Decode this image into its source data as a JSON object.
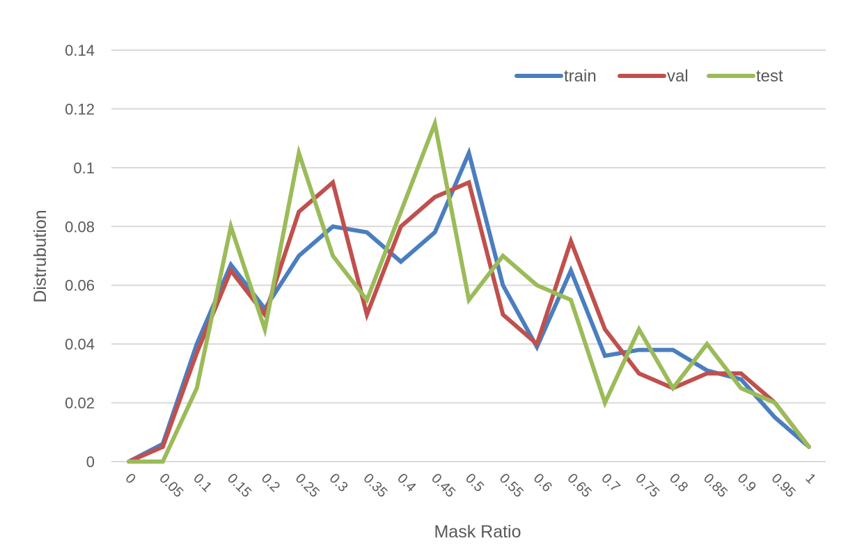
{
  "chart_data": {
    "type": "line",
    "title": "",
    "xlabel": "Mask Ratio",
    "ylabel": "Distrubution",
    "ylim": [
      0,
      0.14
    ],
    "yticks": [
      "0",
      "0.02",
      "0.04",
      "0.06",
      "0.08",
      "0.1",
      "0.12",
      "0.14"
    ],
    "grid": true,
    "legend_position": "top-right (inside)",
    "categories": [
      "0",
      "0.05",
      "0.1",
      "0.15",
      "0.2",
      "0.25",
      "0.3",
      "0.35",
      "0.4",
      "0.45",
      "0.5",
      "0.55",
      "0.6",
      "0.65",
      "0.7",
      "0.75",
      "0.8",
      "0.85",
      "0.9",
      "0.95",
      "1"
    ],
    "series": [
      {
        "name": "train",
        "color": "#4a7ebf",
        "values": [
          0,
          0.006,
          0.04,
          0.067,
          0.052,
          0.07,
          0.08,
          0.078,
          0.068,
          0.078,
          0.105,
          0.06,
          0.039,
          0.065,
          0.036,
          0.038,
          0.038,
          0.031,
          0.028,
          0.015,
          0.005
        ]
      },
      {
        "name": "val",
        "color": "#c0504d",
        "values": [
          0,
          0.005,
          0.037,
          0.065,
          0.05,
          0.085,
          0.095,
          0.05,
          0.08,
          0.09,
          0.095,
          0.05,
          0.04,
          0.075,
          0.045,
          0.03,
          0.025,
          0.03,
          0.03,
          0.02,
          0.005
        ]
      },
      {
        "name": "test",
        "color": "#9bbb59",
        "values": [
          0,
          0,
          0.025,
          0.08,
          0.045,
          0.105,
          0.07,
          0.055,
          0.085,
          0.115,
          0.055,
          0.07,
          0.06,
          0.055,
          0.02,
          0.045,
          0.025,
          0.04,
          0.025,
          0.02,
          0.005
        ]
      }
    ]
  }
}
